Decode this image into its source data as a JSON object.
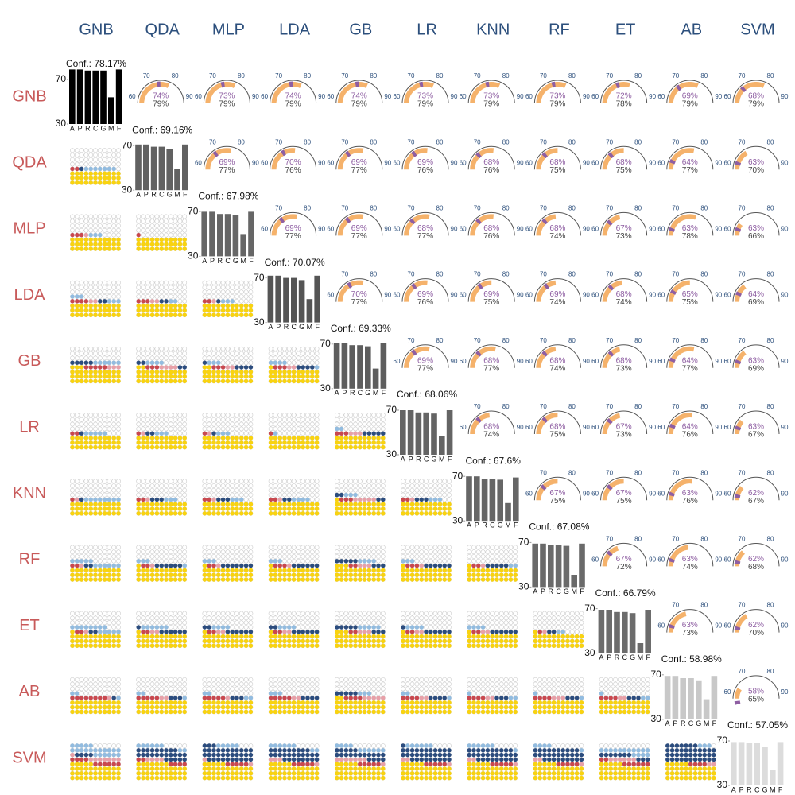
{
  "chart_data": {
    "type": "matrix",
    "models": [
      "GNB",
      "QDA",
      "MLP",
      "LDA",
      "GB",
      "LR",
      "KNN",
      "RF",
      "ET",
      "AB",
      "SVM"
    ],
    "bar_categories": [
      "A",
      "P",
      "R",
      "C",
      "G",
      "M",
      "F"
    ],
    "bar_ylim": [
      30,
      80
    ],
    "bar_yticks": [
      70,
      30
    ],
    "diagonal": [
      {
        "label": "Conf.: 78.17%",
        "color": "#000000",
        "values": [
          79,
          79,
          78,
          78,
          78,
          54,
          79
        ]
      },
      {
        "label": "Conf.: 69.16%",
        "color": "#616161",
        "values": [
          71,
          71,
          69,
          69,
          67,
          49,
          71
        ]
      },
      {
        "label": "Conf.: 67.98%",
        "color": "#666666",
        "values": [
          70,
          70,
          68,
          68,
          67,
          50,
          70
        ]
      },
      {
        "label": "Conf.: 70.07%",
        "color": "#555555",
        "values": [
          72,
          72,
          70,
          70,
          68,
          51,
          72
        ]
      },
      {
        "label": "Conf.: 69.33%",
        "color": "#5e5e5e",
        "values": [
          71,
          71,
          69,
          69,
          68,
          48,
          71
        ]
      },
      {
        "label": "Conf.: 68.06%",
        "color": "#646464",
        "values": [
          70,
          70,
          68,
          68,
          67,
          47,
          70
        ]
      },
      {
        "label": "Conf.: 67.6%",
        "color": "#666666",
        "values": [
          70,
          70,
          68,
          68,
          67,
          46,
          69
        ]
      },
      {
        "label": "Conf.: 67.08%",
        "color": "#6a6a6a",
        "values": [
          69,
          69,
          68,
          68,
          67,
          41,
          69
        ]
      },
      {
        "label": "Conf.: 66.79%",
        "color": "#6c6c6c",
        "values": [
          69,
          69,
          67,
          67,
          66,
          39,
          69
        ]
      },
      {
        "label": "Conf.: 58.98%",
        "color": "#c8c8c8",
        "values": [
          69,
          69,
          67,
          67,
          65,
          48,
          69
        ]
      },
      {
        "label": "Conf.: 57.05%",
        "color": "#dcdcdc",
        "values": [
          69,
          69,
          68,
          68,
          65,
          44,
          69
        ]
      }
    ],
    "gauge_lim": [
      60,
      90
    ],
    "gauge_ticks": [
      60,
      70,
      80,
      90
    ],
    "gauge_colors": [
      "#8e5ea2",
      "#f5b26b"
    ],
    "upper": [
      [
        {
          "values": [
            74,
            79
          ],
          "value_labels": [
            "74%",
            "79%"
          ]
        },
        {
          "values": [
            73,
            79
          ],
          "value_labels": [
            "73%",
            "79%"
          ]
        },
        {
          "values": [
            74,
            79
          ],
          "value_labels": [
            "74%",
            "79%"
          ]
        },
        {
          "values": [
            74,
            79
          ],
          "value_labels": [
            "74%",
            "79%"
          ]
        },
        {
          "values": [
            73,
            79
          ],
          "value_labels": [
            "73%",
            "79%"
          ]
        },
        {
          "values": [
            73,
            79
          ],
          "value_labels": [
            "73%",
            "79%"
          ]
        },
        {
          "values": [
            73,
            79
          ],
          "value_labels": [
            "73%",
            "79%"
          ]
        },
        {
          "values": [
            72,
            78
          ],
          "value_labels": [
            "72%",
            "78%"
          ]
        },
        {
          "values": [
            69,
            79
          ],
          "value_labels": [
            "69%",
            "79%"
          ]
        },
        {
          "values": [
            68,
            79
          ],
          "value_labels": [
            "68%",
            "79%"
          ]
        }
      ],
      [
        {
          "values": [
            69,
            77
          ],
          "value_labels": [
            "69%",
            "77%"
          ]
        },
        {
          "values": [
            70,
            76
          ],
          "value_labels": [
            "70%",
            "76%"
          ]
        },
        {
          "values": [
            69,
            77
          ],
          "value_labels": [
            "69%",
            "77%"
          ]
        },
        {
          "values": [
            69,
            76
          ],
          "value_labels": [
            "69%",
            "76%"
          ]
        },
        {
          "values": [
            68,
            76
          ],
          "value_labels": [
            "68%",
            "76%"
          ]
        },
        {
          "values": [
            68,
            75
          ],
          "value_labels": [
            "68%",
            "75%"
          ]
        },
        {
          "values": [
            68,
            75
          ],
          "value_labels": [
            "68%",
            "75%"
          ]
        },
        {
          "values": [
            64,
            77
          ],
          "value_labels": [
            "64%",
            "77%"
          ]
        },
        {
          "values": [
            63,
            70
          ],
          "value_labels": [
            "63%",
            "70%"
          ]
        }
      ],
      [
        {
          "values": [
            69,
            77
          ],
          "value_labels": [
            "69%",
            "77%"
          ]
        },
        {
          "values": [
            69,
            77
          ],
          "value_labels": [
            "69%",
            "77%"
          ]
        },
        {
          "values": [
            68,
            77
          ],
          "value_labels": [
            "68%",
            "77%"
          ]
        },
        {
          "values": [
            68,
            76
          ],
          "value_labels": [
            "68%",
            "76%"
          ]
        },
        {
          "values": [
            68,
            74
          ],
          "value_labels": [
            "68%",
            "74%"
          ]
        },
        {
          "values": [
            67,
            73
          ],
          "value_labels": [
            "67%",
            "73%"
          ]
        },
        {
          "values": [
            63,
            78
          ],
          "value_labels": [
            "63%",
            "78%"
          ]
        },
        {
          "values": [
            63,
            66
          ],
          "value_labels": [
            "63%",
            "66%"
          ]
        }
      ],
      [
        {
          "values": [
            70,
            77
          ],
          "value_labels": [
            "70%",
            "77%"
          ]
        },
        {
          "values": [
            69,
            76
          ],
          "value_labels": [
            "69%",
            "76%"
          ]
        },
        {
          "values": [
            69,
            75
          ],
          "value_labels": [
            "69%",
            "75%"
          ]
        },
        {
          "values": [
            69,
            74
          ],
          "value_labels": [
            "69%",
            "74%"
          ]
        },
        {
          "values": [
            68,
            74
          ],
          "value_labels": [
            "68%",
            "74%"
          ]
        },
        {
          "values": [
            65,
            75
          ],
          "value_labels": [
            "65%",
            "75%"
          ]
        },
        {
          "values": [
            64,
            69
          ],
          "value_labels": [
            "64%",
            "69%"
          ]
        }
      ],
      [
        {
          "values": [
            69,
            77
          ],
          "value_labels": [
            "69%",
            "77%"
          ]
        },
        {
          "values": [
            68,
            77
          ],
          "value_labels": [
            "68%",
            "77%"
          ]
        },
        {
          "values": [
            68,
            74
          ],
          "value_labels": [
            "68%",
            "74%"
          ]
        },
        {
          "values": [
            68,
            73
          ],
          "value_labels": [
            "68%",
            "73%"
          ]
        },
        {
          "values": [
            64,
            77
          ],
          "value_labels": [
            "64%",
            "77%"
          ]
        },
        {
          "values": [
            63,
            69
          ],
          "value_labels": [
            "63%",
            "69%"
          ]
        }
      ],
      [
        {
          "values": [
            68,
            74
          ],
          "value_labels": [
            "68%",
            "74%"
          ]
        },
        {
          "values": [
            68,
            75
          ],
          "value_labels": [
            "68%",
            "75%"
          ]
        },
        {
          "values": [
            67,
            73
          ],
          "value_labels": [
            "67%",
            "73%"
          ]
        },
        {
          "values": [
            64,
            76
          ],
          "value_labels": [
            "64%",
            "76%"
          ]
        },
        {
          "values": [
            63,
            67
          ],
          "value_labels": [
            "63%",
            "67%"
          ]
        }
      ],
      [
        {
          "values": [
            67,
            75
          ],
          "value_labels": [
            "67%",
            "75%"
          ]
        },
        {
          "values": [
            67,
            75
          ],
          "value_labels": [
            "67%",
            "75%"
          ]
        },
        {
          "values": [
            63,
            76
          ],
          "value_labels": [
            "63%",
            "76%"
          ]
        },
        {
          "values": [
            62,
            67
          ],
          "value_labels": [
            "62%",
            "67%"
          ]
        }
      ],
      [
        {
          "values": [
            67,
            72
          ],
          "value_labels": [
            "67%",
            "72%"
          ]
        },
        {
          "values": [
            63,
            74
          ],
          "value_labels": [
            "63%",
            "74%"
          ]
        },
        {
          "values": [
            62,
            68
          ],
          "value_labels": [
            "62%",
            "68%"
          ]
        }
      ],
      [
        {
          "values": [
            63,
            73
          ],
          "value_labels": [
            "63%",
            "73%"
          ]
        },
        {
          "values": [
            62,
            70
          ],
          "value_labels": [
            "62%",
            "70%"
          ]
        }
      ],
      [
        {
          "values": [
            58,
            65
          ],
          "value_labels": [
            "58%",
            "65%"
          ]
        }
      ]
    ],
    "dot_colors": [
      "#f9d30f",
      "#c9484f",
      "#e8a0a8",
      "#2b4c7e",
      "#92bce0"
    ],
    "lower": [
      [
        [
          33,
          2,
          0,
          1,
          7
        ]
      ],
      [
        [
          33,
          3,
          1,
          0,
          3
        ],
        [
          33,
          1,
          0,
          0,
          0
        ]
      ],
      [
        [
          33,
          4,
          2,
          2,
          6
        ],
        [
          33,
          3,
          2,
          2,
          2
        ],
        [
          33,
          2,
          1,
          1,
          3
        ]
      ],
      [
        [
          36,
          5,
          3,
          5,
          6
        ],
        [
          35,
          3,
          4,
          4,
          4
        ],
        [
          35,
          3,
          2,
          5,
          3
        ],
        [
          34,
          3,
          2,
          4,
          5
        ]
      ],
      [
        [
          33,
          2,
          0,
          1,
          5
        ],
        [
          33,
          1,
          1,
          2,
          3
        ],
        [
          33,
          1,
          1,
          1,
          3
        ],
        [
          33,
          1,
          0,
          0,
          1
        ],
        [
          33,
          3,
          3,
          5,
          2
        ]
      ],
      [
        [
          33,
          1,
          1,
          1,
          8
        ],
        [
          33,
          2,
          1,
          3,
          3
        ],
        [
          33,
          2,
          1,
          3,
          3
        ],
        [
          33,
          2,
          1,
          2,
          4
        ],
        [
          34,
          3,
          5,
          4,
          3
        ],
        [
          33,
          2,
          1,
          3,
          3
        ]
      ],
      [
        [
          33,
          2,
          1,
          2,
          11
        ],
        [
          34,
          2,
          1,
          6,
          4
        ],
        [
          34,
          2,
          1,
          7,
          3
        ],
        [
          34,
          3,
          1,
          6,
          3
        ],
        [
          36,
          2,
          3,
          8,
          4
        ],
        [
          34,
          3,
          1,
          6,
          3
        ],
        [
          34,
          2,
          1,
          5,
          2
        ]
      ],
      [
        [
          34,
          2,
          1,
          2,
          13
        ],
        [
          34,
          2,
          2,
          7,
          6
        ],
        [
          34,
          2,
          2,
          8,
          4
        ],
        [
          34,
          2,
          2,
          8,
          4
        ],
        [
          36,
          2,
          3,
          8,
          5
        ],
        [
          34,
          2,
          2,
          7,
          4
        ],
        [
          34,
          2,
          2,
          6,
          4
        ],
        [
          34,
          1,
          1,
          2,
          2
        ]
      ],
      [
        [
          33,
          8,
          1,
          1,
          3
        ],
        [
          33,
          5,
          2,
          3,
          3
        ],
        [
          33,
          5,
          1,
          3,
          4
        ],
        [
          33,
          5,
          2,
          4,
          3
        ],
        [
          35,
          4,
          5,
          5,
          3
        ],
        [
          33,
          4,
          2,
          4,
          3
        ],
        [
          33,
          4,
          2,
          3,
          3
        ],
        [
          33,
          4,
          3,
          3,
          2
        ],
        [
          33,
          4,
          2,
          3,
          3
        ]
      ],
      [
        [
          38,
          10,
          8,
          4,
          22
        ],
        [
          40,
          6,
          4,
          25,
          8
        ],
        [
          38,
          5,
          2,
          35,
          5
        ],
        [
          38,
          5,
          4,
          28,
          8
        ],
        [
          38,
          5,
          8,
          20,
          10
        ],
        [
          38,
          5,
          3,
          32,
          6
        ],
        [
          38,
          5,
          3,
          30,
          7
        ],
        [
          38,
          5,
          3,
          30,
          5
        ],
        [
          38,
          8,
          6,
          10,
          15
        ],
        [
          38,
          4,
          2,
          40,
          3
        ]
      ]
    ]
  }
}
